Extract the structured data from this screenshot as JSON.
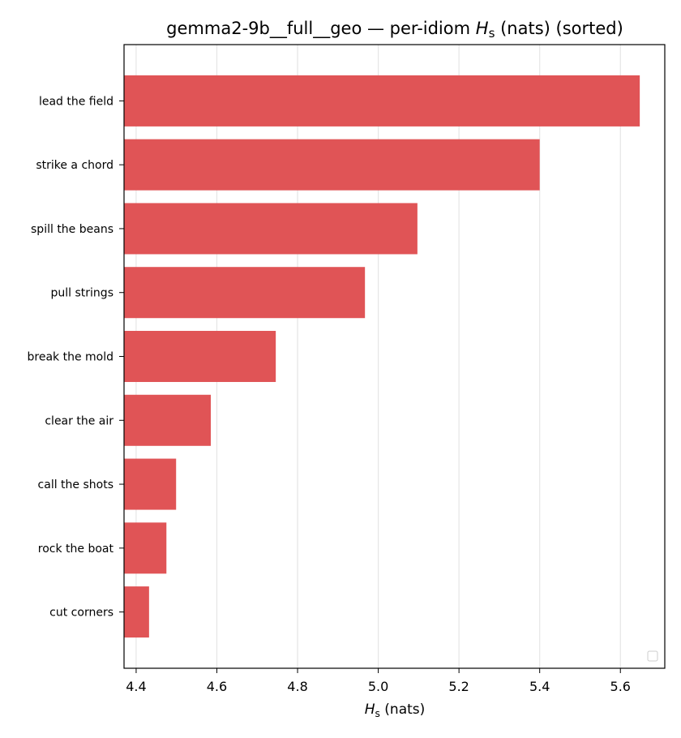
{
  "chart_data": {
    "type": "bar",
    "orientation": "horizontal",
    "title": {
      "prefix": "gemma2-9b__full__geo — per-idiom ",
      "symbol": "H",
      "subscript": "s",
      "suffix": " (nats) (sorted)"
    },
    "xlabel": {
      "symbol": "H",
      "subscript": "s",
      "suffix": " (nats)"
    },
    "ylabel": "",
    "categories": [
      "lead the field",
      "strike a chord",
      "spill the beans",
      "pull strings",
      "break the mold",
      "clear the air",
      "call the shots",
      "rock the boat",
      "cut corners"
    ],
    "values": [
      5.648,
      5.4,
      5.097,
      4.967,
      4.746,
      4.585,
      4.499,
      4.475,
      4.432
    ],
    "xlim": [
      4.37,
      5.71
    ],
    "xticks": [
      "4.4",
      "4.6",
      "4.8",
      "5.0",
      "5.2",
      "5.4",
      "5.6"
    ],
    "grid": "x",
    "legend": "lower-right (empty)",
    "bar_color": "#e05456",
    "grid_color": "#e5e5e5"
  }
}
